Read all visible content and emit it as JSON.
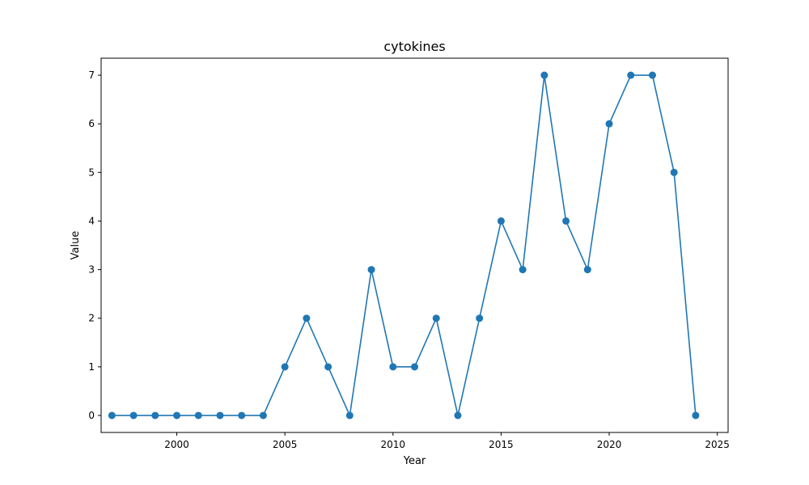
{
  "chart_data": {
    "type": "line",
    "title": "cytokines",
    "xlabel": "Year",
    "ylabel": "Value",
    "xlim": [
      1996.5,
      2025.5
    ],
    "ylim": [
      -0.35,
      7.35
    ],
    "x_ticks": [
      2000,
      2005,
      2010,
      2015,
      2020,
      2025
    ],
    "y_ticks": [
      0,
      1,
      2,
      3,
      4,
      5,
      6,
      7
    ],
    "grid": false,
    "series": [
      {
        "color": "#1f77b4",
        "x": [
          1997,
          1998,
          1999,
          2000,
          2001,
          2002,
          2003,
          2004,
          2005,
          2006,
          2007,
          2008,
          2009,
          2010,
          2011,
          2012,
          2013,
          2014,
          2015,
          2016,
          2017,
          2018,
          2019,
          2020,
          2021,
          2022,
          2023,
          2024
        ],
        "y": [
          0,
          0,
          0,
          0,
          0,
          0,
          0,
          0,
          1,
          2,
          1,
          0,
          3,
          1,
          1,
          2,
          0,
          2,
          4,
          3,
          7,
          4,
          3,
          6,
          7,
          7,
          5,
          0
        ]
      }
    ]
  }
}
